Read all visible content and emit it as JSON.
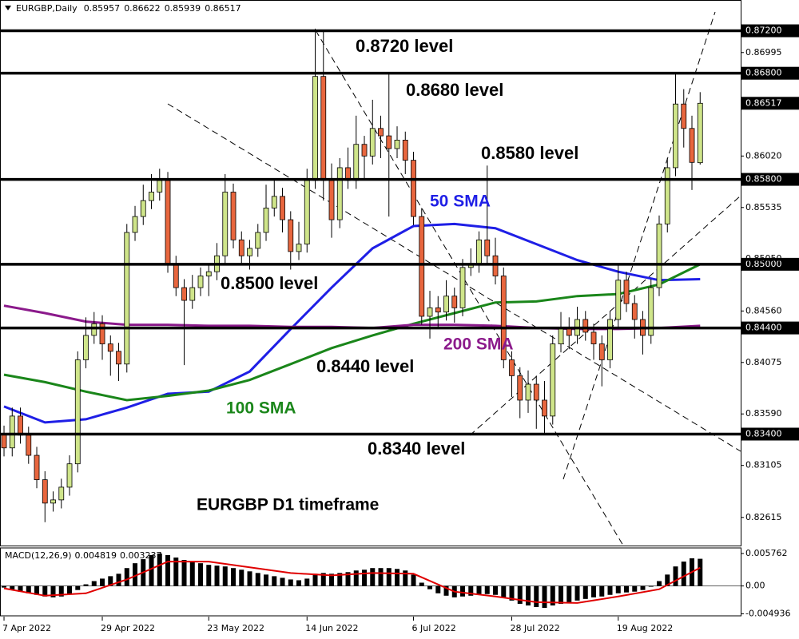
{
  "chart_data": [
    {
      "type": "candlestick",
      "title": "EURGBP,Daily",
      "xlim": [
        -0.49,
        89.95
      ],
      "ylim": [
        0.8235,
        0.8749
      ],
      "up_color": "#cfe58a",
      "down_color": "#e8663e",
      "open": [
        0.834,
        0.8327,
        0.8357,
        0.8339,
        0.832,
        0.8297,
        0.8275,
        0.8278,
        0.829,
        0.8312,
        0.841,
        0.8433,
        0.8444,
        0.8425,
        0.8418,
        0.8406,
        0.853,
        0.8545,
        0.856,
        0.8568,
        0.8579,
        0.85,
        0.8478,
        0.8466,
        0.8478,
        0.8489,
        0.8493,
        0.8508,
        0.8568,
        0.8523,
        0.8508,
        0.8515,
        0.853,
        0.8553,
        0.8564,
        0.8542,
        0.8512,
        0.8519,
        0.8579,
        0.8677,
        0.8579,
        0.8542,
        0.8591,
        0.8579,
        0.8613,
        0.8602,
        0.8628,
        0.8621,
        0.8609,
        0.8617,
        0.8598,
        0.8545,
        0.8451,
        0.8459,
        0.8455,
        0.847,
        0.8459,
        0.8497,
        0.85,
        0.8523,
        0.8508,
        0.8489,
        0.841,
        0.8395,
        0.8372,
        0.8387,
        0.8372,
        0.8357,
        0.8425,
        0.844,
        0.8433,
        0.8448,
        0.8436,
        0.8425,
        0.841,
        0.8448,
        0.8485,
        0.8463,
        0.8448,
        0.8433,
        0.8478,
        0.8538,
        0.8591,
        0.8651,
        0.8628,
        0.85957
      ],
      "high": [
        0.8348,
        0.8365,
        0.8365,
        0.8347,
        0.8328,
        0.8305,
        0.8286,
        0.8298,
        0.832,
        0.8418,
        0.845,
        0.8455,
        0.8452,
        0.8433,
        0.8426,
        0.8538,
        0.8555,
        0.8575,
        0.8585,
        0.859,
        0.8587,
        0.8508,
        0.8486,
        0.849,
        0.8497,
        0.8501,
        0.852,
        0.8585,
        0.8576,
        0.8531,
        0.8523,
        0.8538,
        0.8575,
        0.858,
        0.8572,
        0.855,
        0.854,
        0.859,
        0.8722,
        0.872,
        0.8595,
        0.86,
        0.861,
        0.864,
        0.8621,
        0.8655,
        0.864,
        0.868,
        0.863,
        0.8625,
        0.8606,
        0.8553,
        0.8475,
        0.847,
        0.8485,
        0.8478,
        0.8505,
        0.8515,
        0.8531,
        0.8593,
        0.8525,
        0.8497,
        0.8418,
        0.8403,
        0.84,
        0.8395,
        0.839,
        0.8433,
        0.8455,
        0.845,
        0.846,
        0.8456,
        0.8444,
        0.8433,
        0.8456,
        0.85,
        0.8493,
        0.8471,
        0.8456,
        0.8486,
        0.8546,
        0.86,
        0.868,
        0.8665,
        0.864,
        0.86622
      ],
      "low": [
        0.8319,
        0.8319,
        0.8331,
        0.8312,
        0.8289,
        0.8257,
        0.8267,
        0.827,
        0.8282,
        0.8304,
        0.8402,
        0.8425,
        0.841,
        0.8395,
        0.839,
        0.8398,
        0.8522,
        0.8537,
        0.8552,
        0.856,
        0.8492,
        0.847,
        0.8405,
        0.8458,
        0.847,
        0.847,
        0.8485,
        0.85,
        0.8515,
        0.85,
        0.8495,
        0.8507,
        0.8522,
        0.8545,
        0.853,
        0.8495,
        0.8504,
        0.8511,
        0.8571,
        0.856,
        0.8525,
        0.8534,
        0.8571,
        0.8571,
        0.858,
        0.8594,
        0.86,
        0.8545,
        0.86,
        0.8585,
        0.8537,
        0.8443,
        0.843,
        0.844,
        0.8447,
        0.8445,
        0.8451,
        0.8489,
        0.8492,
        0.85,
        0.8481,
        0.8402,
        0.8375,
        0.8355,
        0.836,
        0.8345,
        0.8341,
        0.8349,
        0.8417,
        0.842,
        0.8425,
        0.8428,
        0.841,
        0.8385,
        0.8402,
        0.844,
        0.8455,
        0.843,
        0.8415,
        0.8425,
        0.847,
        0.853,
        0.8583,
        0.861,
        0.857,
        0.85939
      ],
      "close": [
        0.8327,
        0.8357,
        0.8339,
        0.832,
        0.8297,
        0.8275,
        0.8278,
        0.829,
        0.8312,
        0.841,
        0.8433,
        0.8444,
        0.8425,
        0.8418,
        0.8406,
        0.853,
        0.8545,
        0.856,
        0.8568,
        0.8579,
        0.85,
        0.8478,
        0.8466,
        0.8478,
        0.8489,
        0.8493,
        0.8508,
        0.8568,
        0.8523,
        0.8508,
        0.8515,
        0.853,
        0.8553,
        0.8564,
        0.8542,
        0.8512,
        0.8519,
        0.8579,
        0.8677,
        0.8579,
        0.8542,
        0.8591,
        0.8579,
        0.8613,
        0.8602,
        0.8628,
        0.8621,
        0.8609,
        0.8617,
        0.8598,
        0.8545,
        0.8451,
        0.8459,
        0.8455,
        0.847,
        0.8459,
        0.8497,
        0.85,
        0.8523,
        0.8508,
        0.8489,
        0.841,
        0.8395,
        0.8372,
        0.8387,
        0.8372,
        0.8357,
        0.8425,
        0.844,
        0.8433,
        0.8448,
        0.8436,
        0.8425,
        0.841,
        0.8448,
        0.8485,
        0.8463,
        0.8448,
        0.8433,
        0.8478,
        0.8538,
        0.8591,
        0.8651,
        0.8628,
        0.8596,
        0.86517
      ],
      "overlays": [
        {
          "name": "50 SMA",
          "color": "#1f1fe6",
          "x": [
            0,
            5,
            10,
            15,
            20,
            25,
            30,
            35,
            40,
            45,
            50,
            55,
            60,
            65,
            70,
            75,
            80,
            85
          ],
          "values": [
            0.8366,
            0.8351,
            0.8354,
            0.8365,
            0.8378,
            0.838,
            0.8399,
            0.8439,
            0.8478,
            0.8515,
            0.8536,
            0.8538,
            0.8534,
            0.8519,
            0.8504,
            0.8493,
            0.8485,
            0.8486
          ]
        },
        {
          "name": "100 SMA",
          "color": "#1a861a",
          "x": [
            0,
            5,
            10,
            15,
            20,
            25,
            30,
            35,
            40,
            45,
            50,
            55,
            60,
            65,
            70,
            75,
            80,
            85
          ],
          "values": [
            0.8396,
            0.8389,
            0.838,
            0.8372,
            0.8376,
            0.8381,
            0.8391,
            0.8406,
            0.8421,
            0.8433,
            0.8444,
            0.8454,
            0.8464,
            0.8465,
            0.847,
            0.8472,
            0.8481,
            0.85
          ]
        },
        {
          "name": "200 SMA",
          "color": "#8b1a8b",
          "x": [
            0,
            5,
            10,
            15,
            20,
            25,
            30,
            35,
            40,
            45,
            50,
            55,
            60,
            65,
            70,
            75,
            80,
            85
          ],
          "values": [
            0.8461,
            0.8454,
            0.8446,
            0.8443,
            0.8443,
            0.8442,
            0.8442,
            0.8441,
            0.8441,
            0.844,
            0.8443,
            0.8443,
            0.8442,
            0.844,
            0.8439,
            0.8439,
            0.844,
            0.8442
          ]
        }
      ],
      "levels": [
        {
          "value": 0.872,
          "label": "0.8720 level",
          "tick_label": "0.87200"
        },
        {
          "value": 0.868,
          "label": "0.8680 level",
          "tick_label": "0.86800"
        },
        {
          "value": 0.858,
          "label": "0.8580 level",
          "tick_label": "0.85800"
        },
        {
          "value": 0.85,
          "label": "0.8500 level",
          "tick_label": "0.85000"
        },
        {
          "value": 0.844,
          "label": "0.8440 level",
          "tick_label": "0.84400"
        },
        {
          "value": 0.834,
          "label": "0.8340 level",
          "tick_label": "0.83400"
        }
      ],
      "yticks": [
        {
          "value": 0.86995,
          "label": "0.86995"
        },
        {
          "value": 0.8602,
          "label": "0.86020"
        },
        0.85535,
        {
          "value": 0.8505,
          "label": "0.85050"
        },
        {
          "value": 0.8456,
          "label": "0.84560"
        },
        0.84075,
        {
          "value": 0.8359,
          "label": "0.83590"
        },
        0.83105,
        0.82615
      ],
      "xticks": [
        {
          "value": 0,
          "label": "7 Apr 2022"
        },
        {
          "value": 12,
          "label": "29 Apr 2022"
        },
        {
          "value": 25,
          "label": "23 May 2022"
        },
        {
          "value": 37,
          "label": "14 Jun 2022"
        },
        {
          "value": 50,
          "label": "6 Jul 2022"
        },
        {
          "value": 62,
          "label": "28 Jul 2022"
        },
        {
          "value": 75,
          "label": "19 Aug 2022"
        }
      ],
      "annotations": [
        "EURGBP D1 timeframe"
      ]
    },
    {
      "type": "macd",
      "title": "MACD(12,26,9)",
      "ylim": [
        -0.0053,
        0.0066
      ],
      "yticks": [
        0.005762,
        {
          "value": 0,
          "label": "0.00"
        },
        -0.004936
      ],
      "histogram": {
        "color": "#000000",
        "values": [
          -0.00029,
          -0.00072,
          -0.00101,
          -0.0013,
          -0.00158,
          -0.00187,
          -0.00202,
          -0.00187,
          -0.00144,
          -0.00072,
          0.00029,
          0.00086,
          0.0013,
          0.00173,
          0.00216,
          0.00317,
          0.00403,
          0.00475,
          0.00547,
          0.00576,
          0.00547,
          0.00504,
          0.00461,
          0.00432,
          0.00403,
          0.00374,
          0.0036,
          0.00346,
          0.00317,
          0.00288,
          0.00259,
          0.0023,
          0.00202,
          0.00173,
          0.00144,
          0.00115,
          0.00101,
          0.0013,
          0.00216,
          0.0023,
          0.00216,
          0.0023,
          0.00245,
          0.00274,
          0.00288,
          0.00317,
          0.00317,
          0.00317,
          0.00302,
          0.00274,
          0.00202,
          0.00058,
          -0.00058,
          -0.0013,
          -0.00173,
          -0.00202,
          -0.00187,
          -0.00173,
          -0.00144,
          -0.00144,
          -0.00158,
          -0.00202,
          -0.00259,
          -0.00317,
          -0.00346,
          -0.00374,
          -0.00389,
          -0.00346,
          -0.00317,
          -0.00288,
          -0.00259,
          -0.0023,
          -0.00202,
          -0.00187,
          -0.00158,
          -0.0013,
          -0.00115,
          -0.00101,
          -0.00072,
          -0.00014,
          0.00086,
          0.00202,
          0.00346,
          0.00432,
          0.0049,
          0.004819
        ]
      },
      "signal": {
        "color": "#e00000",
        "x": [
          0,
          5,
          10,
          15,
          20,
          25,
          30,
          35,
          40,
          45,
          50,
          55,
          60,
          65,
          70,
          75,
          80,
          85
        ],
        "values": [
          -0.00043,
          -0.00173,
          -0.0013,
          0.00115,
          0.00432,
          0.00432,
          0.00331,
          0.0023,
          0.00187,
          0.0023,
          0.00216,
          -0.00101,
          -0.00187,
          -0.00288,
          -0.00302,
          -0.00187,
          -0.00058,
          0.003237
        ]
      }
    }
  ]
}
